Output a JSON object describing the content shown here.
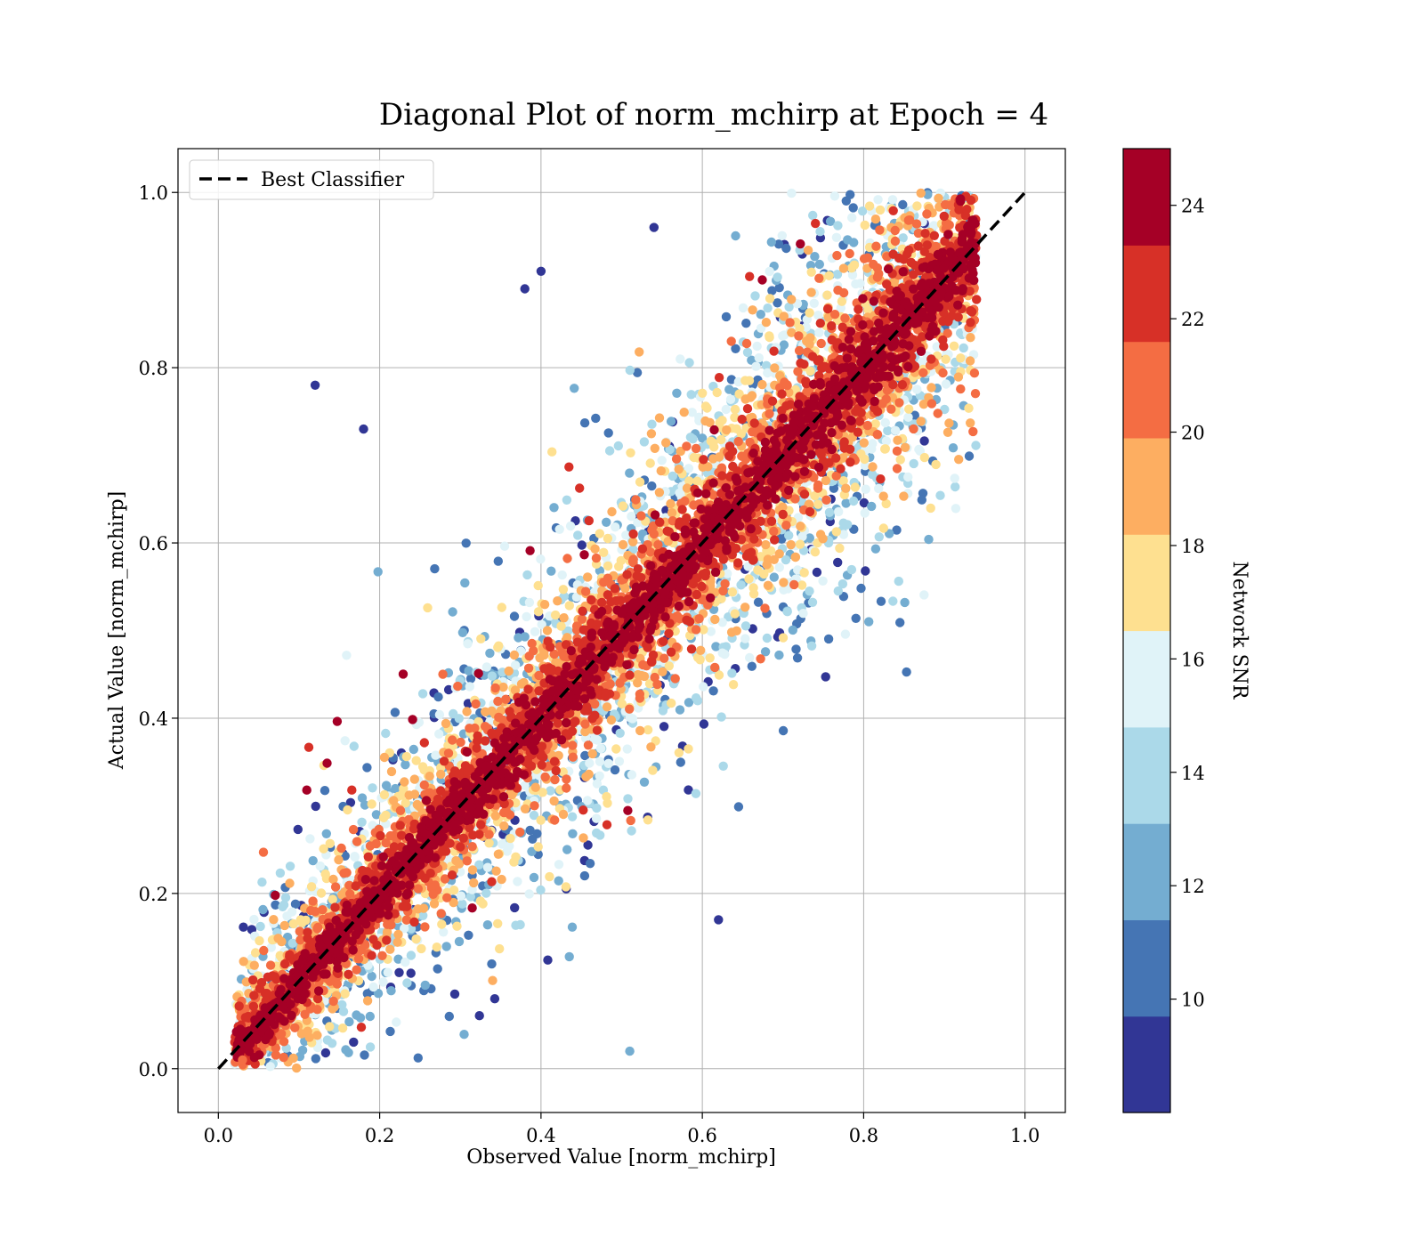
{
  "chart_data": {
    "type": "scatter",
    "title": "Diagonal Plot of norm_mchirp at Epoch = 4",
    "xlabel": "Observed Value [norm_mchirp]",
    "ylabel": "Actual Value [norm_mchirp]",
    "xlim": [
      -0.05,
      1.05
    ],
    "ylim": [
      -0.05,
      1.05
    ],
    "xticks": [
      "0.0",
      "0.2",
      "0.4",
      "0.6",
      "0.8",
      "1.0"
    ],
    "yticks": [
      "0.0",
      "0.2",
      "0.4",
      "0.6",
      "0.8",
      "1.0"
    ],
    "grid": true,
    "legend": {
      "placement": "top-left",
      "entries": [
        "Best Classifier"
      ]
    },
    "reference_line": {
      "label": "Best Classifier",
      "style": "dashed",
      "color": "#000000",
      "x": [
        0.0,
        1.0
      ],
      "y": [
        0.0,
        1.0
      ]
    },
    "colorbar": {
      "label": "Network SNR",
      "range": [
        8,
        25
      ],
      "ticks": [
        "10",
        "12",
        "14",
        "16",
        "18",
        "20",
        "22",
        "24"
      ],
      "tick_values": [
        10,
        12,
        14,
        16,
        18,
        20,
        22,
        24
      ],
      "colors": [
        "#313695",
        "#4575b4",
        "#74add1",
        "#abd9e9",
        "#e0f3f8",
        "#fee090",
        "#fdae61",
        "#f46d43",
        "#d73027",
        "#a50026"
      ]
    },
    "sample_points": [
      {
        "x": 0.12,
        "y": 0.78,
        "snr": 9
      },
      {
        "x": 0.18,
        "y": 0.73,
        "snr": 9
      },
      {
        "x": 0.54,
        "y": 0.96,
        "snr": 9
      },
      {
        "x": 0.51,
        "y": 0.02,
        "snr": 13
      },
      {
        "x": 0.62,
        "y": 0.17,
        "snr": 9
      },
      {
        "x": 0.38,
        "y": 0.89,
        "snr": 9
      },
      {
        "x": 0.4,
        "y": 0.91,
        "snr": 9
      },
      {
        "x": 0.92,
        "y": 0.99,
        "snr": 24
      },
      {
        "x": 0.03,
        "y": 0.01,
        "snr": 20
      }
    ]
  }
}
